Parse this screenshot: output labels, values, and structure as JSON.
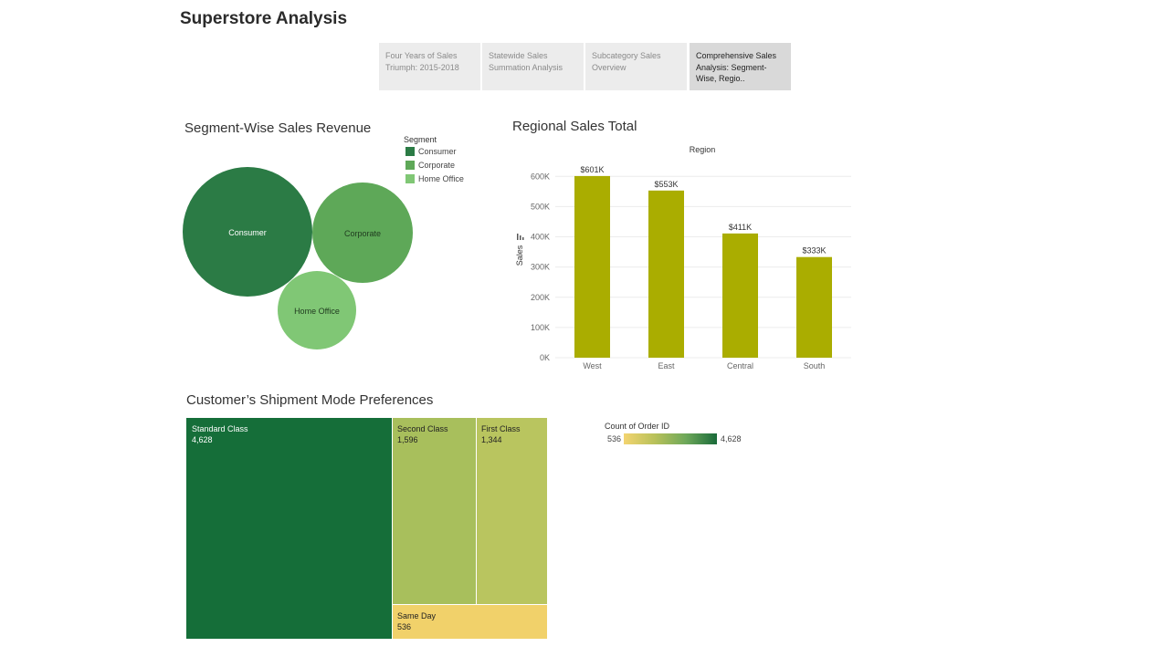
{
  "app": {
    "title": "Superstore Analysis"
  },
  "tabs": [
    {
      "label": "Four Years of Sales Triumph: 2015-2018",
      "active": false
    },
    {
      "label": "Statewide Sales Summation Analysis",
      "active": false
    },
    {
      "label": "Subcategory Sales Overview",
      "active": false
    },
    {
      "label": "Comprehensive Sales Analysis: Segment-Wise, Regio..",
      "active": true
    }
  ],
  "colors": {
    "consumer": "#2b7b45",
    "corporate": "#5ea858",
    "home_office": "#80c775",
    "bar": "#aaad00",
    "treemap_standard": "#156e39",
    "treemap_second": "#a8bf5c",
    "treemap_first": "#b9c55f",
    "treemap_sameday": "#f1d16a",
    "colorbar_low": "#f3d470",
    "colorbar_high": "#1a6b3a"
  },
  "chart_data": [
    {
      "type": "bubble",
      "title": "Segment-Wise Sales Revenue",
      "legend_title": "Segment",
      "legend_position": "top-right",
      "categories": [
        "Consumer",
        "Corporate",
        "Home Office"
      ],
      "values": [
        1148061,
        688494,
        424982
      ],
      "series_colors": [
        "#2b7b45",
        "#5ea858",
        "#80c775"
      ]
    },
    {
      "type": "bar",
      "title": "Regional Sales Total",
      "header": "Region",
      "ylabel": "Sales",
      "categories": [
        "West",
        "East",
        "Central",
        "South"
      ],
      "values": [
        601000,
        553000,
        411000,
        333000
      ],
      "data_labels": [
        "$601K",
        "$553K",
        "$411K",
        "$333K"
      ],
      "ylim": [
        0,
        640000
      ],
      "yticks": [
        0,
        100000,
        200000,
        300000,
        400000,
        500000,
        600000
      ],
      "ytick_labels": [
        "0K",
        "100K",
        "200K",
        "300K",
        "400K",
        "500K",
        "600K"
      ],
      "grid": true
    },
    {
      "type": "treemap",
      "title": "Customer’s Shipment Mode Preferences",
      "categories": [
        "Standard Class",
        "Second Class",
        "First Class",
        "Same Day"
      ],
      "values": [
        4628,
        1596,
        1344,
        536
      ],
      "value_labels": [
        "4,628",
        "1,596",
        "1,344",
        "536"
      ],
      "colorbar": {
        "title": "Count of Order ID",
        "min_label": "536",
        "max_label": "4,628",
        "min": 536,
        "max": 4628
      }
    }
  ]
}
